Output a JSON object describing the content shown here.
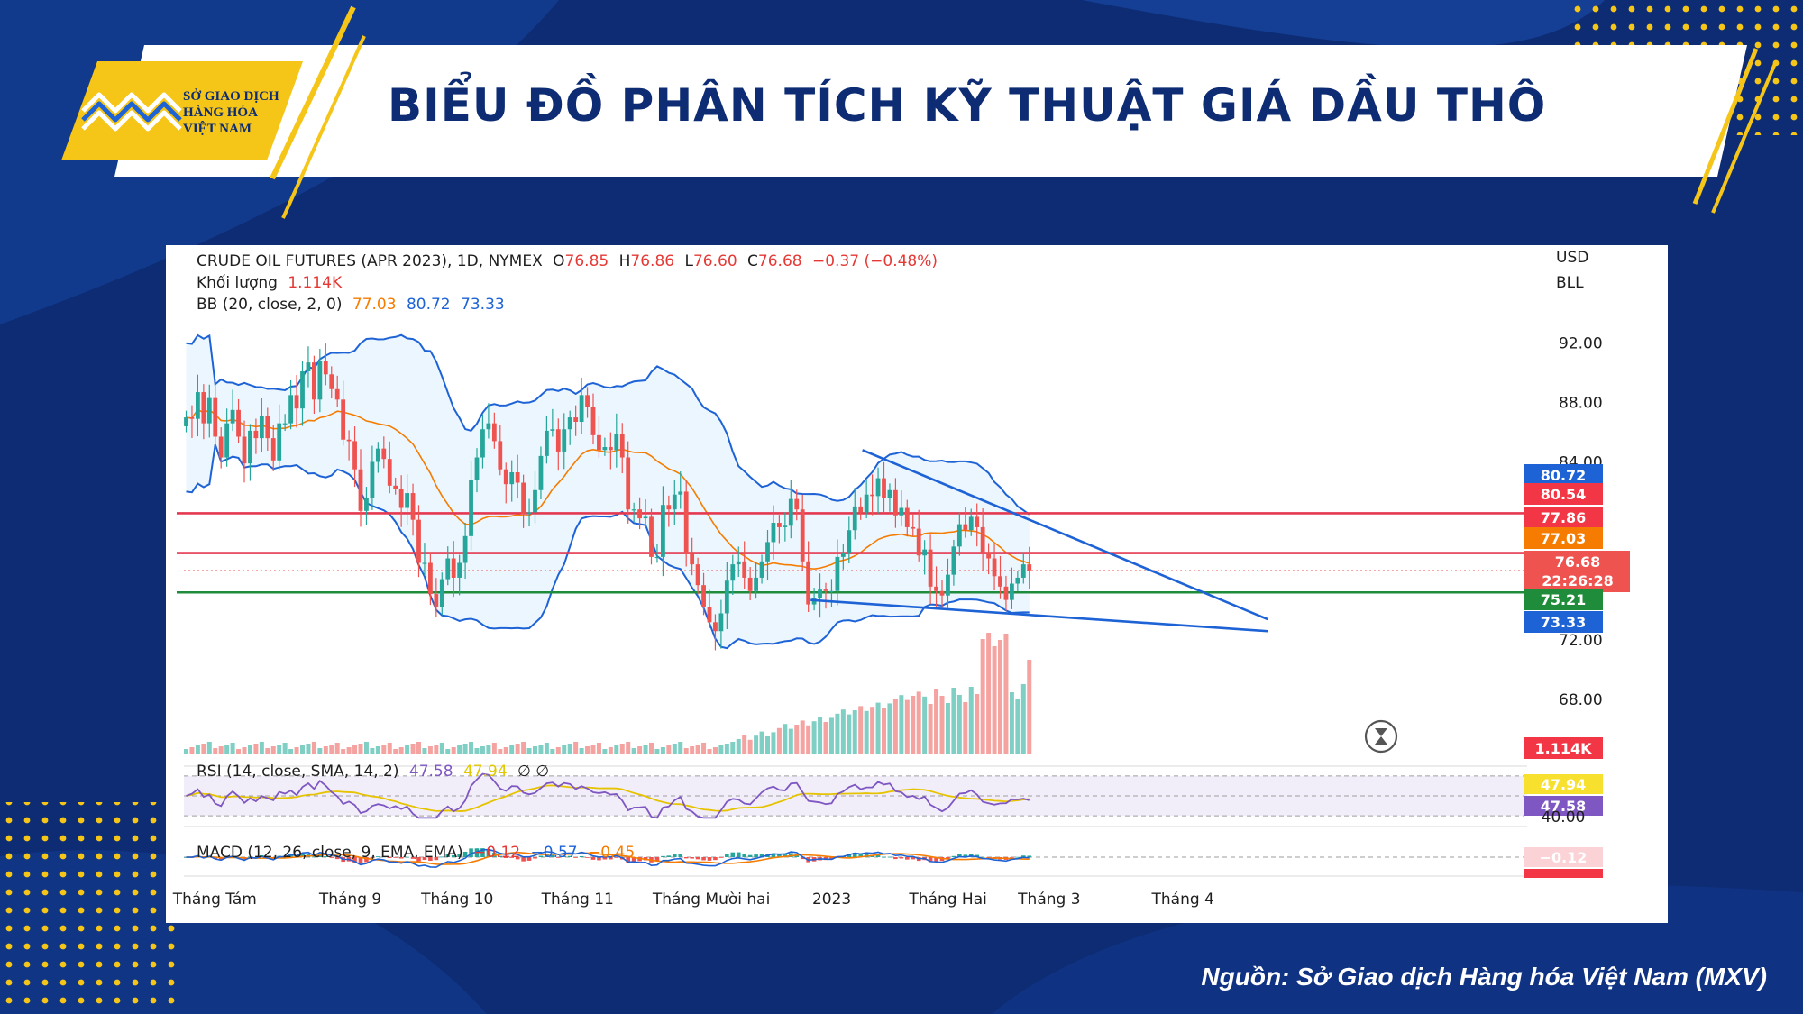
{
  "header": {
    "logo_lines": [
      "SỞ GIAO DỊCH",
      "HÀNG HÓA",
      "VIỆT NAM"
    ],
    "title": "BIỂU ĐỒ PHÂN TÍCH KỸ THUẬT GIÁ DẦU THÔ"
  },
  "footer": {
    "source": "Nguồn: Sở Giao dịch Hàng hóa Việt Nam (MXV)"
  },
  "colors": {
    "background": "#0d2c73",
    "accent": "#f5c518",
    "up": "#26a69a",
    "down": "#ef5350",
    "bb": "#1e63d6",
    "basis": "#f57c00"
  },
  "chart_data": {
    "type": "candlestick",
    "symbol": "CRUDE OIL FUTURES (APR 2023), 1D, NYMEX",
    "ohlc": {
      "o_label": "O",
      "o": "76.85",
      "h_label": "H",
      "h": "76.86",
      "l_label": "L",
      "l": "76.60",
      "c_label": "C",
      "c": "76.68",
      "change": "−0.37 (−0.48%)"
    },
    "volume": {
      "label": "Khối lượng",
      "value": "1.114K"
    },
    "bb": {
      "label": "BB (20, close, 2, 0)",
      "basis": "77.03",
      "upper": "80.72",
      "lower": "73.33"
    },
    "currency": "USD",
    "unit": "BLL",
    "ylim": [
      64.6,
      98.6
    ],
    "y_ticks": [
      92,
      88,
      84,
      72,
      68
    ],
    "y_tick_labels": [
      "92.00",
      "88.00",
      "84.00",
      "72.00",
      "68.00"
    ],
    "x_ticks": [
      {
        "idx": -0.5,
        "label": "Tháng Tám"
      },
      {
        "idx": 22.8,
        "label": "Tháng 9"
      },
      {
        "idx": 41.2,
        "label": "Tháng 10"
      },
      {
        "idx": 61.9,
        "label": "Tháng 11"
      },
      {
        "idx": 84.9,
        "label": "Tháng Mười hai"
      },
      {
        "idx": 105.6,
        "label": "2023"
      },
      {
        "idx": 125.6,
        "label": "Tháng Hai"
      },
      {
        "idx": 143.0,
        "label": "Tháng 3"
      },
      {
        "idx": 166.0,
        "label": "Tháng 4"
      }
    ],
    "horizontal_lines": [
      {
        "value": 80.54,
        "color": "#e53950"
      },
      {
        "value": 77.86,
        "color": "#e53950"
      },
      {
        "value": 75.21,
        "color": "#1e8c3a"
      }
    ],
    "trendlines": [
      {
        "from": [
          116.3,
          84.8
        ],
        "to": [
          186.0,
          73.4
        ]
      },
      {
        "from": [
          107.4,
          74.7
        ],
        "to": [
          186.0,
          72.6
        ]
      }
    ],
    "price_labels": [
      {
        "value": 80.72,
        "text": "80.72",
        "color": "#1e63d6"
      },
      {
        "value": 80.54,
        "text": "80.54",
        "color": "#f23645"
      },
      {
        "value": 77.86,
        "text": "77.86",
        "color": "#f23645"
      },
      {
        "value": 77.03,
        "text": "77.03",
        "color": "#f57c00"
      },
      {
        "value": 76.68,
        "text": "76.68",
        "countdown": "22:26:28",
        "color": "#ef5350"
      },
      {
        "value": 75.21,
        "text": "75.21",
        "color": "#1e8c3a"
      },
      {
        "value": 73.33,
        "text": "73.33",
        "color": "#1e63d6"
      }
    ],
    "volume_label": "1.114K",
    "close": [
      87.0,
      86.9,
      88.7,
      86.6,
      88.3,
      85.7,
      84.3,
      86.6,
      87.5,
      85.7,
      83.9,
      86.1,
      85.6,
      87.1,
      85.6,
      84.1,
      86.6,
      86.6,
      88.5,
      87.6,
      90.1,
      90.7,
      88.2,
      90.8,
      89.9,
      88.9,
      88.2,
      85.5,
      85.4,
      83.5,
      80.7,
      81.6,
      84.0,
      84.9,
      84.2,
      82.4,
      82.2,
      80.9,
      81.9,
      80.1,
      77.2,
      77.2,
      75.1,
      74.2,
      76.1,
      77.5,
      76.2,
      77.2,
      79.0,
      82.8,
      84.3,
      86.2,
      86.6,
      85.4,
      83.5,
      82.5,
      83.3,
      82.6,
      80.5,
      80.6,
      82.1,
      84.4,
      86.1,
      86.2,
      84.7,
      86.2,
      87.0,
      86.7,
      88.5,
      87.7,
      85.8,
      84.8,
      85.0,
      84.8,
      85.9,
      84.3,
      80.8,
      80.8,
      80.2,
      80.3,
      77.6,
      77.6,
      81.1,
      80.8,
      81.8,
      82.0,
      77.8,
      77.1,
      75.7,
      74.2,
      73.2,
      72.6,
      73.8,
      76.0,
      77.1,
      77.3,
      76.2,
      75.3,
      76.2,
      77.3,
      78.6,
      79.9,
      79.6,
      79.7,
      81.5,
      80.8,
      77.3,
      74.4,
      74.8,
      75.4,
      75.3,
      75.3,
      77.6,
      77.9,
      79.4,
      81.0,
      80.6,
      81.8,
      81.7,
      82.9,
      81.6,
      82.1,
      80.4,
      80.9,
      79.6,
      79.5,
      77.7,
      78.1,
      75.6,
      75.3,
      75.0,
      76.4,
      78.3,
      79.8,
      79.4,
      80.3,
      79.6,
      77.9,
      77.5,
      76.3,
      75.6,
      74.7,
      75.8,
      76.2,
      77.1,
      76.7
    ]
  },
  "rsi": {
    "label": "RSI (14, close, SMA, 14, 2)",
    "value": "47.58",
    "sma": "47.94",
    "extra": "∅ ∅",
    "tick": "40.00",
    "ylim": [
      22,
      78
    ],
    "band": [
      30,
      70
    ],
    "mid": 50
  },
  "macd": {
    "label": "MACD (12, 26, close, 9, EMA, EMA)",
    "hist": "−0.12",
    "macd": "−0.57",
    "signal": "−0.45",
    "ylim": [
      -4.5,
      4.5
    ]
  }
}
